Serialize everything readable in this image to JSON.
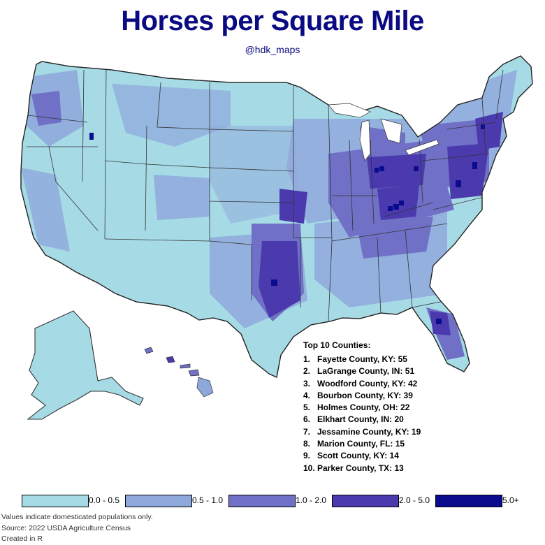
{
  "title": "Horses per Square Mile",
  "handle": "@hdk_maps",
  "colors": {
    "bin0": "#a6dbe6",
    "bin1": "#8fa8dc",
    "bin2": "#6f70c6",
    "bin3": "#4a3aae",
    "bin4": "#0b0b8e",
    "border": "#333333"
  },
  "top10": {
    "heading": "Top 10 Counties:",
    "items": [
      {
        "rank": "1.",
        "text": "Fayette County, KY: 55"
      },
      {
        "rank": "2.",
        "text": "LaGrange County, IN: 51"
      },
      {
        "rank": "3.",
        "text": "Woodford County, KY: 42"
      },
      {
        "rank": "4.",
        "text": "Bourbon County, KY: 39"
      },
      {
        "rank": "5.",
        "text": "Holmes County, OH: 22"
      },
      {
        "rank": "6.",
        "text": "Elkhart County, IN: 20"
      },
      {
        "rank": "7.",
        "text": "Jessamine County, KY: 19"
      },
      {
        "rank": "8.",
        "text": "Marion County, FL: 15"
      },
      {
        "rank": "9.",
        "text": "Scott County, KY: 14"
      },
      {
        "rank": "10.",
        "text": "Parker County, TX: 13"
      }
    ]
  },
  "legend": [
    {
      "label": "0.0 - 0.5",
      "color": "#a6dbe6"
    },
    {
      "label": "0.5 - 1.0",
      "color": "#8fa8dc"
    },
    {
      "label": "1.0 - 2.0",
      "color": "#6f70c6"
    },
    {
      "label": "2.0 - 5.0",
      "color": "#4a3aae"
    },
    {
      "label": "5.0+",
      "color": "#0b0b8e"
    }
  ],
  "notes": {
    "line1": "Values indicate domesticated populations only.",
    "line2": "Source: 2022 USDA Agriculture Census",
    "line3": "Created in R"
  }
}
